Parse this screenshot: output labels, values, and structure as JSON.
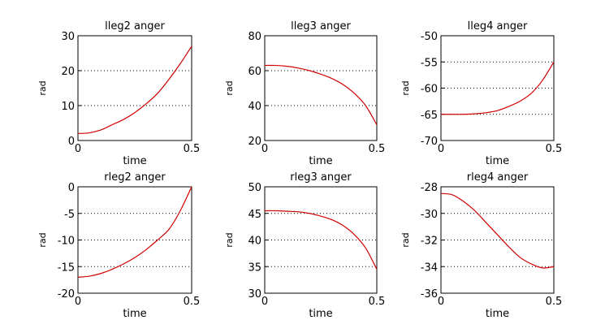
{
  "series_color": "#d00000",
  "chart_data": [
    {
      "type": "line",
      "title": "lleg2 anger",
      "xlabel": "time",
      "ylabel": "rad",
      "xlim": [
        0,
        0.5
      ],
      "ylim": [
        0,
        30
      ],
      "xticks": [
        0,
        0.5
      ],
      "xtick_labels": [
        "0",
        "0.5"
      ],
      "yticks": [
        0,
        10,
        20,
        30
      ],
      "ytick_labels": [
        "0",
        "10",
        "20",
        "30"
      ],
      "grid": "horizontal dotted",
      "x": [
        0,
        0.05,
        0.1,
        0.15,
        0.2,
        0.25,
        0.3,
        0.35,
        0.4,
        0.45,
        0.5
      ],
      "y": [
        2,
        2.2,
        3,
        4.5,
        6,
        8,
        10.5,
        13.5,
        17.5,
        22,
        27
      ]
    },
    {
      "type": "line",
      "title": "lleg3 anger",
      "xlabel": "time",
      "ylabel": "rad",
      "xlim": [
        0,
        0.5
      ],
      "ylim": [
        20,
        80
      ],
      "xticks": [
        0,
        0.5
      ],
      "xtick_labels": [
        "0",
        "0.5"
      ],
      "yticks": [
        20,
        40,
        60,
        80
      ],
      "ytick_labels": [
        "20",
        "40",
        "60",
        "80"
      ],
      "grid": "horizontal dotted",
      "x": [
        0,
        0.05,
        0.1,
        0.15,
        0.2,
        0.25,
        0.3,
        0.35,
        0.4,
        0.45,
        0.5
      ],
      "y": [
        63,
        63,
        62.5,
        61.5,
        60,
        58,
        55.5,
        52,
        47,
        40,
        29
      ]
    },
    {
      "type": "line",
      "title": "lleg4 anger",
      "xlabel": "time",
      "ylabel": "rad",
      "xlim": [
        0,
        0.5
      ],
      "ylim": [
        -70,
        -50
      ],
      "xticks": [
        0,
        0.5
      ],
      "xtick_labels": [
        "0",
        "0.5"
      ],
      "yticks": [
        -70,
        -65,
        -60,
        -55,
        -50
      ],
      "ytick_labels": [
        "-70",
        "-65",
        "-60",
        "-55",
        "-50"
      ],
      "grid": "horizontal dotted",
      "x": [
        0,
        0.05,
        0.1,
        0.15,
        0.2,
        0.25,
        0.3,
        0.35,
        0.4,
        0.45,
        0.5
      ],
      "y": [
        -65,
        -65,
        -65,
        -64.9,
        -64.7,
        -64.3,
        -63.5,
        -62.5,
        -61,
        -58.5,
        -55
      ]
    },
    {
      "type": "line",
      "title": "rleg2 anger",
      "xlabel": "time",
      "ylabel": "rad",
      "xlim": [
        0,
        0.5
      ],
      "ylim": [
        -20,
        0
      ],
      "xticks": [
        0,
        0.5
      ],
      "xtick_labels": [
        "0",
        "0.5"
      ],
      "yticks": [
        -20,
        -15,
        -10,
        -5,
        0
      ],
      "ytick_labels": [
        "-20",
        "-15",
        "-10",
        "-5",
        "0"
      ],
      "grid": "horizontal dotted",
      "x": [
        0,
        0.05,
        0.1,
        0.15,
        0.2,
        0.25,
        0.3,
        0.35,
        0.4,
        0.45,
        0.5
      ],
      "y": [
        -17,
        -16.8,
        -16.3,
        -15.5,
        -14.5,
        -13.3,
        -11.8,
        -10,
        -8,
        -4.5,
        0
      ]
    },
    {
      "type": "line",
      "title": "rleg3 anger",
      "xlabel": "time",
      "ylabel": "rad",
      "xlim": [
        0,
        0.5
      ],
      "ylim": [
        30,
        50
      ],
      "xticks": [
        0,
        0.5
      ],
      "xtick_labels": [
        "0",
        "0.5"
      ],
      "yticks": [
        30,
        35,
        40,
        45,
        50
      ],
      "ytick_labels": [
        "30",
        "35",
        "40",
        "45",
        "50"
      ],
      "grid": "horizontal dotted",
      "x": [
        0,
        0.05,
        0.1,
        0.15,
        0.2,
        0.25,
        0.3,
        0.35,
        0.4,
        0.45,
        0.5
      ],
      "y": [
        45.5,
        45.5,
        45.4,
        45.3,
        45,
        44.5,
        43.8,
        42.7,
        41,
        38.5,
        34.5
      ]
    },
    {
      "type": "line",
      "title": "rleg4 anger",
      "xlabel": "time",
      "ylabel": "rad",
      "xlim": [
        0,
        0.5
      ],
      "ylim": [
        -36,
        -28
      ],
      "xticks": [
        0,
        0.5
      ],
      "xtick_labels": [
        "0",
        "0.5"
      ],
      "yticks": [
        -36,
        -34,
        -32,
        -30,
        -28
      ],
      "ytick_labels": [
        "-36",
        "-34",
        "-32",
        "-30",
        "-28"
      ],
      "grid": "horizontal dotted",
      "x": [
        0,
        0.05,
        0.1,
        0.15,
        0.2,
        0.25,
        0.3,
        0.35,
        0.4,
        0.45,
        0.5
      ],
      "y": [
        -28.5,
        -28.6,
        -29.1,
        -29.8,
        -30.7,
        -31.6,
        -32.5,
        -33.3,
        -33.8,
        -34.1,
        -34
      ]
    }
  ]
}
